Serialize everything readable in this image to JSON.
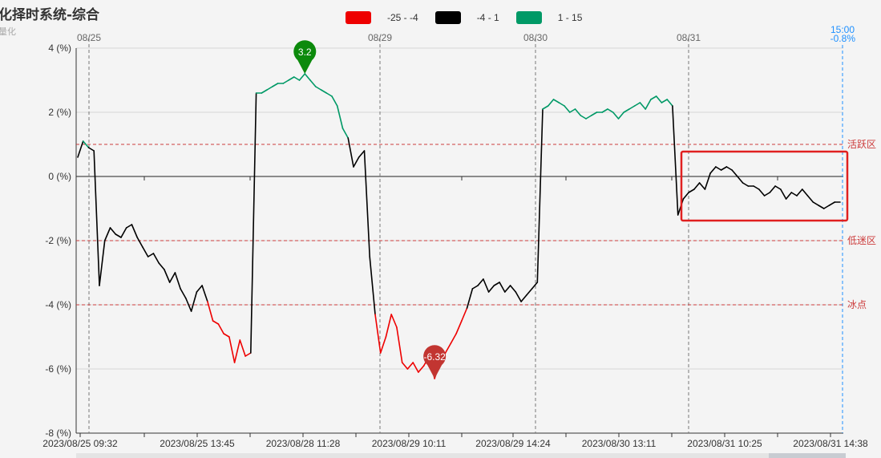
{
  "header": {
    "title": "化择时系统-综合",
    "subtitle": "量化"
  },
  "legend": [
    {
      "label": "-25 - -4",
      "color": "#ee0000"
    },
    {
      "label": "-4 - 1",
      "color": "#000000"
    },
    {
      "label": "1 - 15",
      "color": "#009966"
    }
  ],
  "markers": {
    "max_label": "3.2",
    "min_label": "-6.32",
    "max_color": "#0c8a0c",
    "min_color": "#c23531"
  },
  "end_readout": {
    "time": "15:00",
    "value": "-0.8%",
    "color": "#1e90ff"
  },
  "chart_data": {
    "type": "line",
    "title": "",
    "xlabel": "",
    "ylabel": "",
    "ylim": [
      -8,
      4
    ],
    "yticks": [
      "4 (%)",
      "2 (%)",
      "0 (%)",
      "-2 (%)",
      "-4 (%)",
      "-6 (%)",
      "-8 (%)"
    ],
    "date_labels": [
      "08/25",
      "08/29",
      "08/30",
      "08/31"
    ],
    "x_tick_labels": [
      "2023/08/25 09:32",
      "2023/08/25 13:45",
      "2023/08/28 11:28",
      "2023/08/29 10:11",
      "2023/08/29 14:24",
      "2023/08/30 13:11",
      "2023/08/31 10:25",
      "2023/08/31 14:38"
    ],
    "reference_lines": [
      {
        "value": 1,
        "label": "活跃区"
      },
      {
        "value": -2,
        "label": "低迷区"
      },
      {
        "value": -4,
        "label": "冰点"
      }
    ],
    "color_ranges": [
      {
        "from": -25,
        "to": -4,
        "color": "#ee0000"
      },
      {
        "from": -4,
        "to": 1,
        "color": "#000000"
      },
      {
        "from": 1,
        "to": 15,
        "color": "#009966"
      }
    ],
    "grid": true,
    "legend_position": "top-center",
    "series": [
      {
        "values": [
          0.6,
          1.1,
          0.9,
          0.8,
          -3.4,
          -2.0,
          -1.6,
          -1.8,
          -1.9,
          -1.6,
          -1.5,
          -1.9,
          -2.2,
          -2.5,
          -2.4,
          -2.7,
          -2.9,
          -3.3,
          -3.0,
          -3.5,
          -3.8,
          -4.2,
          -3.6,
          -3.4,
          -3.9,
          -4.5,
          -4.6,
          -4.9,
          -5.0,
          -5.8,
          -5.1,
          -5.6,
          -5.5,
          2.6,
          2.6,
          2.7,
          2.8,
          2.9,
          2.9,
          3.0,
          3.1,
          3.0,
          3.2,
          3.0,
          2.8,
          2.7,
          2.6,
          2.5,
          2.2,
          1.5,
          1.2,
          0.3,
          0.6,
          0.8,
          -2.5,
          -4.3,
          -5.5,
          -5.0,
          -4.3,
          -4.7,
          -5.8,
          -6.0,
          -5.8,
          -6.1,
          -5.9,
          -5.6,
          -6.3,
          -5.8,
          -5.5,
          -5.2,
          -4.9,
          -4.5,
          -4.1,
          -3.5,
          -3.4,
          -3.2,
          -3.6,
          -3.4,
          -3.3,
          -3.6,
          -3.4,
          -3.6,
          -3.9,
          -3.7,
          -3.5,
          -3.3,
          2.1,
          2.2,
          2.4,
          2.3,
          2.2,
          2.0,
          2.1,
          1.9,
          1.8,
          1.9,
          2.0,
          2.0,
          2.1,
          2.0,
          1.8,
          2.0,
          2.1,
          2.2,
          2.3,
          2.1,
          2.4,
          2.5,
          2.3,
          2.4,
          2.2,
          -1.2,
          -0.7,
          -0.5,
          -0.4,
          -0.2,
          -0.4,
          0.1,
          0.3,
          0.2,
          0.3,
          0.2,
          0.0,
          -0.2,
          -0.3,
          -0.3,
          -0.4,
          -0.6,
          -0.5,
          -0.3,
          -0.4,
          -0.7,
          -0.5,
          -0.6,
          -0.4,
          -0.6,
          -0.8,
          -0.9,
          -1.0,
          -0.9,
          -0.8,
          -0.8
        ]
      }
    ]
  }
}
